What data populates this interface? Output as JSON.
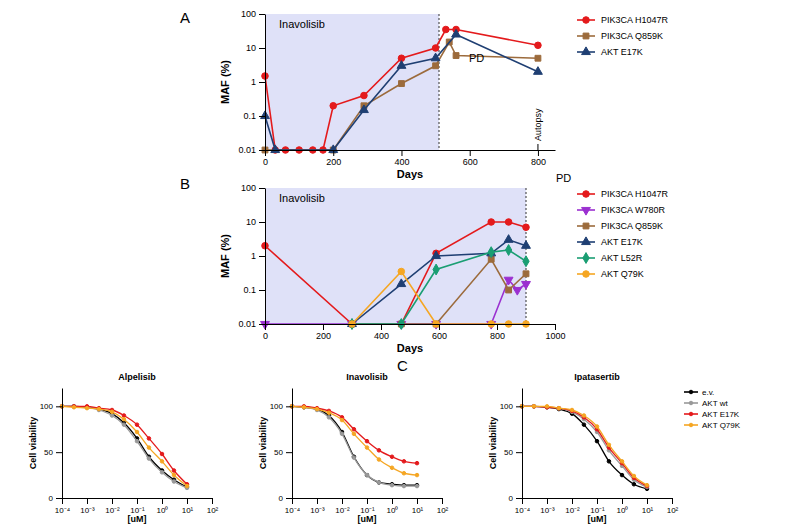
{
  "chart_data": [
    {
      "type": "line",
      "panel": "A",
      "x_label": "Days",
      "y_label": "MAF (%)",
      "log": "y",
      "xlim": [
        0,
        850
      ],
      "xticks": [
        0,
        200,
        400,
        600,
        800
      ],
      "ylim": [
        0.01,
        100
      ],
      "yticks": [
        0.01,
        0.1,
        1,
        10,
        100
      ],
      "legend": "right",
      "annotations": [
        {
          "type": "span",
          "x0": 0,
          "x1": 510,
          "label": "Inavolisib"
        },
        {
          "type": "vline",
          "x": 510,
          "label": "PD"
        },
        {
          "type": "tick",
          "x": 800,
          "label": "Autopsy"
        }
      ],
      "series": [
        {
          "name": "PIK3CA H1047R",
          "color": "#e41a1c",
          "marker": "circle",
          "x": [
            0,
            30,
            60,
            100,
            140,
            170,
            200,
            290,
            400,
            500,
            530,
            560,
            800
          ],
          "values": [
            1.5,
            0.01,
            0.01,
            0.01,
            0.01,
            0.01,
            0.2,
            0.4,
            5,
            10,
            35,
            35,
            12
          ]
        },
        {
          "name": "PIK3CA Q859K",
          "color": "#9c6b3c",
          "marker": "square",
          "x": [
            0,
            200,
            290,
            400,
            500,
            540,
            560,
            800
          ],
          "values": [
            0.01,
            0.01,
            0.2,
            0.9,
            3,
            15,
            6,
            5
          ]
        },
        {
          "name": "AKT E17K",
          "color": "#1f3f73",
          "marker": "triangle",
          "x": [
            0,
            30,
            200,
            290,
            400,
            500,
            560,
            800
          ],
          "values": [
            0.1,
            0.01,
            0.01,
            0.15,
            3,
            5,
            25,
            2
          ]
        }
      ]
    },
    {
      "type": "line",
      "panel": "B",
      "x_label": "Days",
      "y_label": "MAF (%)",
      "log": "y",
      "xlim": [
        0,
        1000
      ],
      "xticks": [
        0,
        200,
        400,
        600,
        800,
        1000
      ],
      "ylim": [
        0.01,
        100
      ],
      "yticks": [
        0.01,
        0.1,
        1,
        10,
        100
      ],
      "legend": "right",
      "annotations": [
        {
          "type": "span",
          "x0": 0,
          "x1": 900,
          "label": "Inavolisib"
        },
        {
          "type": "vline",
          "x": 900,
          "label": "PD"
        }
      ],
      "series": [
        {
          "name": "PIK3CA H1047R",
          "color": "#e41a1c",
          "marker": "circle",
          "x": [
            0,
            300,
            470,
            590,
            780,
            840,
            900
          ],
          "values": [
            2,
            0.01,
            0.01,
            1.2,
            10,
            10,
            7
          ]
        },
        {
          "name": "PIK3CA W780R",
          "color": "#9b30d0",
          "marker": "triangle-down",
          "x": [
            0,
            300,
            470,
            590,
            780,
            840,
            870,
            900
          ],
          "values": [
            0.01,
            0.01,
            0.01,
            0.01,
            0.01,
            0.2,
            0.1,
            0.15
          ]
        },
        {
          "name": "PIK3CA Q859K",
          "color": "#9c6b3c",
          "marker": "square",
          "x": [
            300,
            470,
            590,
            780,
            840,
            900
          ],
          "values": [
            0.01,
            0.01,
            0.01,
            0.8,
            0.1,
            0.3
          ]
        },
        {
          "name": "AKT E17K",
          "color": "#1f3f73",
          "marker": "triangle",
          "x": [
            300,
            470,
            590,
            780,
            840,
            900
          ],
          "values": [
            0.01,
            0.15,
            1,
            1.2,
            3,
            2
          ]
        },
        {
          "name": "AKT L52R",
          "color": "#1a9e73",
          "marker": "diamond",
          "x": [
            300,
            470,
            590,
            780,
            840,
            900
          ],
          "values": [
            0.01,
            0.01,
            0.4,
            1.3,
            1.5,
            0.7
          ]
        },
        {
          "name": "AKT Q79K",
          "color": "#f5a623",
          "marker": "circle",
          "x": [
            300,
            470,
            590,
            780,
            840,
            900
          ],
          "values": [
            0.01,
            0.35,
            0.01,
            0.01,
            0.01,
            0.01
          ]
        }
      ]
    },
    {
      "type": "line",
      "panel": "C",
      "title": "Alpelisib",
      "x_label": "[uM]",
      "y_label": "Cell viability",
      "log": "x",
      "xlim": [
        0.0001,
        100
      ],
      "xticks": [
        {
          "value": 0.0001,
          "label": "10⁻⁴"
        },
        {
          "value": 0.001,
          "label": "10⁻³"
        },
        {
          "value": 0.01,
          "label": "10⁻²"
        },
        {
          "value": 0.1,
          "label": "10⁻¹"
        },
        {
          "value": 1,
          "label": "10⁰"
        },
        {
          "value": 10,
          "label": "10¹"
        },
        {
          "value": 100,
          "label": "10²"
        }
      ],
      "ylim": [
        0,
        120
      ],
      "yticks": [
        0,
        50,
        100
      ],
      "line_style": "smooth",
      "series": [
        {
          "color": "#000000",
          "marker": "circle",
          "x": [
            0.0001,
            0.0003,
            0.001,
            0.003,
            0.01,
            0.03,
            0.1,
            0.3,
            1,
            3,
            10
          ],
          "values": [
            100,
            100,
            99,
            97,
            92,
            82,
            65,
            45,
            30,
            20,
            12
          ]
        },
        {
          "color": "#999999",
          "marker": "circle",
          "x": [
            0.0001,
            0.0003,
            0.001,
            0.003,
            0.01,
            0.03,
            0.1,
            0.3,
            1,
            3,
            10
          ],
          "values": [
            100,
            100,
            99,
            96,
            90,
            80,
            62,
            43,
            28,
            18,
            11
          ]
        },
        {
          "color": "#e41a1c",
          "marker": "circle",
          "x": [
            0.0001,
            0.0003,
            0.001,
            0.003,
            0.01,
            0.03,
            0.1,
            0.3,
            1,
            3,
            10
          ],
          "values": [
            100,
            100,
            100,
            98,
            96,
            90,
            80,
            65,
            48,
            30,
            15
          ]
        },
        {
          "color": "#f5a623",
          "marker": "circle",
          "x": [
            0.0001,
            0.0003,
            0.001,
            0.003,
            0.01,
            0.03,
            0.1,
            0.3,
            1,
            3,
            10
          ],
          "values": [
            100,
            99,
            98,
            97,
            94,
            86,
            72,
            55,
            40,
            25,
            13
          ]
        }
      ]
    },
    {
      "type": "line",
      "title": "Inavolisib",
      "x_label": "[uM]",
      "y_label": "Cell viability",
      "log": "x",
      "xlim": [
        0.0001,
        100
      ],
      "xticks": [
        {
          "value": 0.0001,
          "label": "10⁻⁴"
        },
        {
          "value": 0.001,
          "label": "10⁻³"
        },
        {
          "value": 0.01,
          "label": "10⁻²"
        },
        {
          "value": 0.1,
          "label": "10⁻¹"
        },
        {
          "value": 1,
          "label": "10⁰"
        },
        {
          "value": 10,
          "label": "10¹"
        },
        {
          "value": 100,
          "label": "10²"
        }
      ],
      "ylim": [
        0,
        120
      ],
      "yticks": [
        0,
        50,
        100
      ],
      "line_style": "smooth",
      "series": [
        {
          "color": "#000000",
          "marker": "circle",
          "x": [
            0.0001,
            0.0003,
            0.001,
            0.003,
            0.01,
            0.03,
            0.1,
            0.3,
            1,
            3,
            10
          ],
          "values": [
            100,
            99,
            97,
            90,
            72,
            45,
            25,
            17,
            15,
            14,
            14
          ]
        },
        {
          "color": "#999999",
          "marker": "circle",
          "x": [
            0.0001,
            0.0003,
            0.001,
            0.003,
            0.01,
            0.03,
            0.1,
            0.3,
            1,
            3,
            10
          ],
          "values": [
            100,
            99,
            96,
            88,
            70,
            44,
            25,
            17,
            14,
            13,
            13
          ]
        },
        {
          "color": "#e41a1c",
          "marker": "circle",
          "x": [
            0.0001,
            0.0003,
            0.001,
            0.003,
            0.01,
            0.03,
            0.1,
            0.3,
            1,
            3,
            10
          ],
          "values": [
            100,
            100,
            98,
            95,
            88,
            75,
            62,
            52,
            45,
            40,
            38
          ]
        },
        {
          "color": "#f5a623",
          "marker": "circle",
          "x": [
            0.0001,
            0.0003,
            0.001,
            0.003,
            0.01,
            0.03,
            0.1,
            0.3,
            1,
            3,
            10
          ],
          "values": [
            100,
            99,
            97,
            93,
            85,
            70,
            55,
            42,
            33,
            27,
            25
          ]
        }
      ]
    },
    {
      "type": "line",
      "title": "Ipatasertib",
      "x_label": "[uM]",
      "y_label": "Cell viability",
      "log": "x",
      "xlim": [
        0.0001,
        100
      ],
      "xticks": [
        {
          "value": 0.0001,
          "label": "10⁻⁴"
        },
        {
          "value": 0.001,
          "label": "10⁻³"
        },
        {
          "value": 0.01,
          "label": "10⁻²"
        },
        {
          "value": 0.1,
          "label": "10⁻¹"
        },
        {
          "value": 1,
          "label": "10⁰"
        },
        {
          "value": 10,
          "label": "10¹"
        },
        {
          "value": 100,
          "label": "10²"
        }
      ],
      "ylim": [
        0,
        120
      ],
      "yticks": [
        0,
        50,
        100
      ],
      "line_style": "smooth",
      "legend": "right",
      "series": [
        {
          "name": "e.v.",
          "color": "#000000",
          "marker": "circle",
          "x": [
            0.0001,
            0.0003,
            0.001,
            0.003,
            0.01,
            0.03,
            0.1,
            0.3,
            1,
            3,
            10
          ],
          "values": [
            100,
            100,
            99,
            97,
            92,
            80,
            62,
            40,
            25,
            15,
            10
          ]
        },
        {
          "name": "AKT wt",
          "color": "#999999",
          "marker": "circle",
          "x": [
            0.0001,
            0.0003,
            0.001,
            0.003,
            0.01,
            0.03,
            0.1,
            0.3,
            1,
            3,
            10
          ],
          "values": [
            100,
            100,
            99,
            98,
            94,
            86,
            72,
            52,
            35,
            20,
            12
          ]
        },
        {
          "name": "AKT E17K",
          "color": "#e41a1c",
          "marker": "circle",
          "x": [
            0.0001,
            0.0003,
            0.001,
            0.003,
            0.01,
            0.03,
            0.1,
            0.3,
            1,
            3,
            10
          ],
          "values": [
            100,
            100,
            99,
            98,
            95,
            88,
            75,
            55,
            38,
            22,
            13
          ]
        },
        {
          "name": "AKT Q79K",
          "color": "#f5a623",
          "marker": "circle",
          "x": [
            0.0001,
            0.0003,
            0.001,
            0.003,
            0.01,
            0.03,
            0.1,
            0.3,
            1,
            3,
            10
          ],
          "values": [
            100,
            100,
            100,
            98,
            96,
            90,
            78,
            58,
            40,
            24,
            14
          ]
        }
      ]
    }
  ]
}
